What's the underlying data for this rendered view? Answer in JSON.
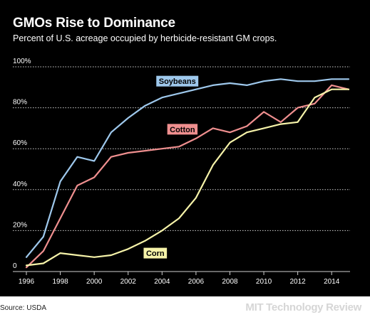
{
  "header": {
    "title": "GMOs Rise to Dominance",
    "subtitle": "Percent of U.S. acreage occupied by herbicide-resistant GM crops."
  },
  "footer": {
    "source": "Source: USDA",
    "brand": "MIT Technology Review"
  },
  "colors": {
    "background": "#000000",
    "gridline": "#cfcfcf",
    "text": "#ffffff",
    "soybeans": "#9ec8ec",
    "cotton": "#ef8f8f",
    "corn": "#f6f3a9"
  },
  "chart_data": {
    "type": "line",
    "title": "GMOs Rise to Dominance",
    "subtitle": "Percent of U.S. acreage occupied by herbicide-resistant GM crops.",
    "xlabel": "",
    "ylabel": "",
    "xlim": [
      1996,
      2015
    ],
    "ylim": [
      0,
      100
    ],
    "grid": true,
    "x": [
      1996,
      1997,
      1998,
      1999,
      2000,
      2001,
      2002,
      2003,
      2004,
      2005,
      2006,
      2007,
      2008,
      2009,
      2010,
      2011,
      2012,
      2013,
      2014,
      2015
    ],
    "x_ticks": [
      "1996",
      "1998",
      "2000",
      "2002",
      "2004",
      "2006",
      "2008",
      "2010",
      "2012",
      "2014"
    ],
    "x_tick_values": [
      1996,
      1998,
      2000,
      2002,
      2004,
      2006,
      2008,
      2010,
      2012,
      2014
    ],
    "y_ticks": [
      "0",
      "20%",
      "40%",
      "60%",
      "80%",
      "100%"
    ],
    "y_tick_values": [
      0,
      20,
      40,
      60,
      80,
      100
    ],
    "series": [
      {
        "name": "Soybeans",
        "color": "#9ec8ec",
        "values": [
          7,
          17,
          44,
          56,
          54,
          68,
          75,
          81,
          85,
          87,
          89,
          91,
          92,
          91,
          93,
          94,
          93,
          93,
          94,
          94
        ],
        "label_at": [
          2004.9,
          93
        ]
      },
      {
        "name": "Cotton",
        "color": "#ef8f8f",
        "values": [
          2,
          10,
          26,
          42,
          46,
          56,
          58,
          59,
          60,
          61,
          65,
          70,
          68,
          71,
          78,
          73,
          80,
          82,
          91,
          89
        ],
        "label_at": [
          2005.2,
          69.5
        ]
      },
      {
        "name": "Corn",
        "color": "#f6f3a9",
        "values": [
          3,
          4,
          9,
          8,
          7,
          8,
          11,
          15,
          20,
          26,
          36,
          52,
          63,
          68,
          70,
          72,
          73,
          85,
          89,
          89
        ],
        "label_at": [
          2003.6,
          9
        ]
      }
    ]
  }
}
